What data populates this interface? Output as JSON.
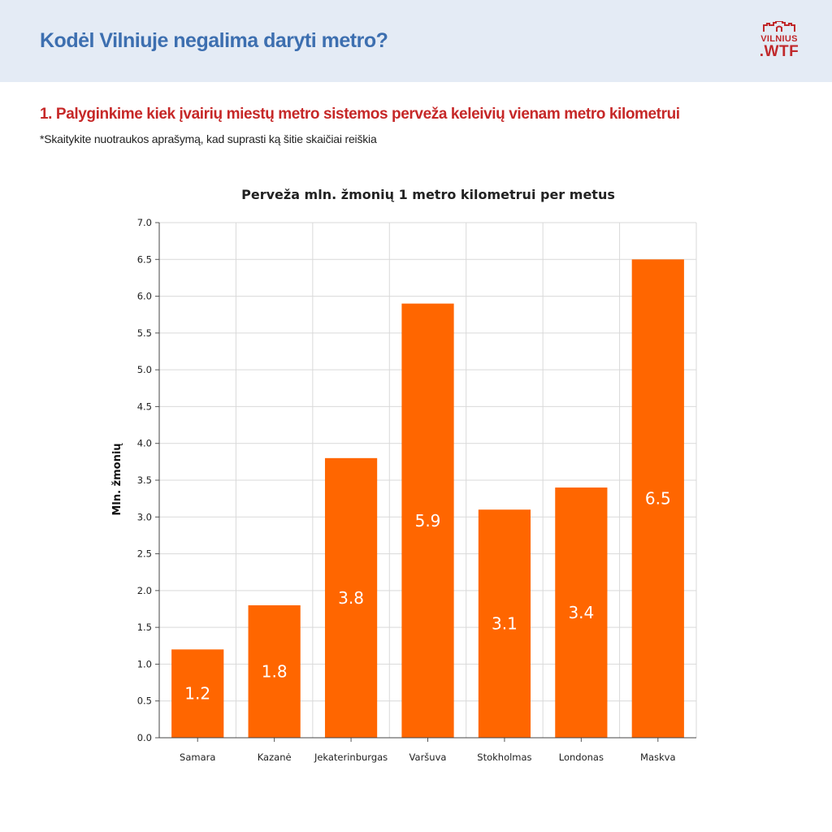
{
  "header": {
    "title": "Kodėl Vilniuje negalima daryti metro?",
    "logo_line1": "VILNIUS",
    "logo_line2": ".WTF"
  },
  "section": {
    "title": "1. Palyginkime kiek įvairių miestų metro sistemos perveža keleivių vienam metro kilometrui",
    "note": "*Skaitykite nuotraukos aprašymą, kad suprasti ką šitie skaičiai reiškia"
  },
  "colors": {
    "header_bg": "#e4ebf5",
    "header_title": "#3d6fb0",
    "accent_red": "#c62828",
    "bar": "#ff6600",
    "grid": "#d9d9d9"
  },
  "chart_data": {
    "type": "bar",
    "title": "Perveža mln. žmonių 1 metro kilometrui per metus",
    "xlabel": "",
    "ylabel": "Mln. žmonių",
    "categories": [
      "Samara",
      "Kazanė",
      "Jekaterinburgas",
      "Varšuva",
      "Stokholmas",
      "Londonas",
      "Maskva"
    ],
    "values": [
      1.2,
      1.8,
      3.8,
      5.9,
      3.1,
      3.4,
      6.5
    ],
    "value_labels": [
      "1.2",
      "1.8",
      "3.8",
      "5.9",
      "3.1",
      "3.4",
      "6.5"
    ],
    "ylim": [
      0,
      7
    ],
    "yticks": [
      "0.0",
      "0.5",
      "1.0",
      "1.5",
      "2.0",
      "2.5",
      "3.0",
      "3.5",
      "4.0",
      "4.5",
      "5.0",
      "5.5",
      "6.0",
      "6.5",
      "7.0"
    ],
    "grid": true,
    "legend": "none"
  }
}
